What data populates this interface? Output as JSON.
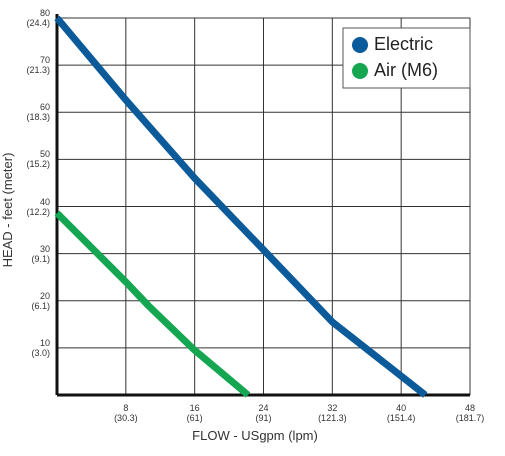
{
  "chart_data": {
    "type": "line",
    "x_label": "FLOW - USgpm (lpm)",
    "y_label": "HEAD - feet (meter)",
    "xlim": [
      0,
      48
    ],
    "ylim": [
      0,
      80
    ],
    "xticks": [
      {
        "value": 8,
        "label": "8\n(30.3)"
      },
      {
        "value": 16,
        "label": "16\n(61)"
      },
      {
        "value": 24,
        "label": "24\n(91)"
      },
      {
        "value": 32,
        "label": "32\n(121.3)"
      },
      {
        "value": 40,
        "label": "40\n(151.4)"
      },
      {
        "value": 48,
        "label": "48\n(181.7)"
      }
    ],
    "yticks": [
      {
        "value": 10,
        "label": "10\n(3.0)"
      },
      {
        "value": 20,
        "label": "20\n(6.1)"
      },
      {
        "value": 30,
        "label": "30\n(9.1)"
      },
      {
        "value": 40,
        "label": "40\n(12.2)"
      },
      {
        "value": 50,
        "label": "50\n(15.2)"
      },
      {
        "value": 60,
        "label": "60\n(18.3)"
      },
      {
        "value": 70,
        "label": "70\n(21.3)"
      },
      {
        "value": 80,
        "label": "80\n(24.4)"
      }
    ],
    "grid": true,
    "legend": "upper right",
    "series": [
      {
        "name": "Electric",
        "color": "#0b5a9a",
        "x": [
          0,
          8,
          16,
          24,
          32,
          42.8
        ],
        "values": [
          80,
          62.6,
          46,
          30.8,
          15.5,
          0
        ]
      },
      {
        "name": "Air (M6)",
        "color": "#14a651",
        "x": [
          0,
          8,
          10.6,
          16,
          22.2
        ],
        "values": [
          38.6,
          24,
          19,
          9.5,
          0
        ]
      }
    ]
  }
}
